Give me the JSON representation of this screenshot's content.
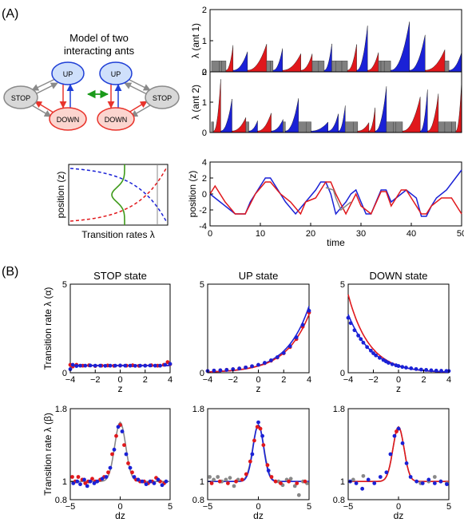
{
  "panel_a_label": "(A)",
  "panel_b_label": "(B)",
  "diagram": {
    "title_line1": "Model of two",
    "title_line2": "interacting ants",
    "states": {
      "up": "UP",
      "stop": "STOP",
      "down": "DOWN"
    },
    "colors": {
      "up": "#1f3fd6",
      "down": "#e8342c",
      "stop": "#8a8a8a",
      "coupling": "#1a9a1a",
      "up_fill": "#cfe0fb",
      "down_fill": "#fbd5cf",
      "stop_fill": "#d8d8d8"
    }
  },
  "colors": {
    "red": "#e0181c",
    "blue": "#1a21d6",
    "gray": "#888888",
    "green": "#3e9a1a"
  },
  "chart_data": [
    {
      "id": "rates-schematic",
      "type": "line",
      "xlabel": "Transition rates λ",
      "ylabel": "position (z)",
      "series": [
        {
          "style": "dashed",
          "color": "red"
        },
        {
          "style": "dashed",
          "color": "blue"
        },
        {
          "style": "solid",
          "color": "green"
        }
      ]
    },
    {
      "id": "ant1-rates",
      "type": "area",
      "ylabel": "λ (ant 1)",
      "ylim": [
        0,
        2
      ],
      "yticks": [
        "0",
        "1",
        "2"
      ],
      "xlim": [
        0,
        50
      ]
    },
    {
      "id": "ant2-rates",
      "type": "area",
      "ylabel": "λ (ant 2)",
      "ylim": [
        0,
        2
      ],
      "yticks": [
        "0",
        "1",
        "2"
      ],
      "xlim": [
        0,
        50
      ]
    },
    {
      "id": "position-trace",
      "type": "line",
      "xlabel": "time",
      "ylabel": "position (z)",
      "xlim": [
        0,
        50
      ],
      "ylim": [
        -4,
        4
      ],
      "xticks": [
        "0",
        "10",
        "20",
        "30",
        "40",
        "50"
      ],
      "yticks": [
        "-4",
        "-2",
        "0",
        "2",
        "4"
      ],
      "series": [
        {
          "color": "blue",
          "x": [
            0,
            2,
            5,
            7,
            8,
            9,
            11,
            12,
            14,
            15,
            17,
            19,
            21,
            22,
            23,
            24,
            25,
            27,
            28,
            29,
            30,
            31,
            32,
            34,
            35,
            36,
            37,
            39,
            41,
            42,
            43,
            44,
            45,
            47,
            50
          ],
          "y": [
            0,
            -1,
            -2.5,
            -2.5,
            -1,
            0,
            2,
            2,
            0,
            -1,
            -2.5,
            -1,
            0.5,
            1.5,
            1.5,
            0,
            -2.5,
            -1,
            0,
            0.5,
            -1,
            -2.5,
            -2.5,
            0.5,
            0.5,
            -1,
            -0.5,
            0.5,
            -0.5,
            -2.8,
            -2.8,
            -1.5,
            -0.5,
            0.5,
            3
          ]
        },
        {
          "color": "red",
          "x": [
            0,
            1,
            3,
            5,
            6,
            7,
            9,
            11,
            12,
            14,
            16,
            18,
            19,
            21,
            23,
            24,
            25,
            27,
            29,
            30,
            32,
            34,
            35,
            36,
            38,
            39,
            40,
            42,
            43,
            44,
            46,
            48,
            50
          ],
          "y": [
            0,
            1,
            -1,
            -2.5,
            -2.5,
            -2.5,
            0,
            1.5,
            1.5,
            0,
            -1,
            -2.5,
            -1,
            -0.5,
            1.5,
            1.5,
            0,
            -2.5,
            0,
            -1.5,
            -2.5,
            0.3,
            0.3,
            -1.5,
            0.5,
            0.5,
            -0.5,
            -2.5,
            -2.5,
            -1.5,
            -0.5,
            -0.5,
            -2.5
          ]
        },
        {
          "color": "gray",
          "x": [
            23,
            24.5,
            25,
            26,
            28
          ],
          "y": [
            0.8,
            0.5,
            -0.5,
            -2,
            -1
          ]
        }
      ]
    },
    {
      "id": "stop-alpha",
      "type": "scatter",
      "title": "STOP state",
      "ylabel": "Transition rate λ (α)",
      "xlabel": "z",
      "xlim": [
        -4,
        4
      ],
      "ylim": [
        0,
        5
      ],
      "xticks": [
        "−4",
        "−2",
        "0",
        "2",
        "4"
      ],
      "yticks": [
        "0",
        "5"
      ],
      "fit": [
        {
          "color": "red",
          "kind": "flat",
          "level": 0.42
        },
        {
          "color": "blue",
          "kind": "flat",
          "level": 0.4
        }
      ],
      "series": [
        {
          "color": "red",
          "x": [
            -4,
            -3.8,
            -3.5,
            -3,
            -2.5,
            -2,
            -1.5,
            -1,
            -0.5,
            0,
            0.5,
            1,
            1.5,
            2,
            2.5,
            3,
            3.5,
            3.8,
            4
          ],
          "y": [
            0.45,
            0.35,
            0.45,
            0.4,
            0.42,
            0.38,
            0.4,
            0.41,
            0.39,
            0.4,
            0.4,
            0.42,
            0.39,
            0.4,
            0.42,
            0.4,
            0.45,
            0.6,
            0.48
          ]
        },
        {
          "color": "blue",
          "x": [
            -4,
            -3.8,
            -3.5,
            -3.2,
            -2.8,
            -2.4,
            -2,
            -1.6,
            -1.2,
            -0.8,
            -0.4,
            0,
            0.4,
            0.8,
            1.2,
            1.6,
            2,
            2.4,
            2.8,
            3.2,
            3.6,
            4
          ],
          "y": [
            0.2,
            0.45,
            0.38,
            0.4,
            0.4,
            0.41,
            0.4,
            0.4,
            0.39,
            0.4,
            0.4,
            0.41,
            0.4,
            0.4,
            0.39,
            0.4,
            0.4,
            0.41,
            0.4,
            0.4,
            0.45,
            0.5
          ]
        }
      ]
    },
    {
      "id": "up-alpha",
      "type": "scatter",
      "title": "UP state",
      "ylabel": "",
      "xlabel": "z",
      "xlim": [
        -4,
        4
      ],
      "ylim": [
        0,
        5
      ],
      "xticks": [
        "−4",
        "−2",
        "0",
        "2",
        "4"
      ],
      "yticks": [
        "0",
        "5"
      ],
      "fit": [
        {
          "color": "blue",
          "kind": "expup",
          "a": 0.4,
          "b": 0.56
        },
        {
          "color": "red",
          "kind": "expup",
          "a": 0.38,
          "b": 0.54
        }
      ],
      "series": [
        {
          "color": "red",
          "x": [
            -4,
            -3.5,
            -3,
            -2.5,
            -2,
            -1.5,
            -1,
            -0.5,
            0,
            0.5,
            1,
            1.5,
            2,
            2.5,
            3,
            3.5,
            4
          ],
          "y": [
            0.1,
            0.12,
            0.14,
            0.17,
            0.2,
            0.24,
            0.3,
            0.36,
            0.44,
            0.54,
            0.68,
            0.86,
            1.1,
            1.45,
            1.9,
            2.6,
            3.4
          ]
        },
        {
          "color": "blue",
          "x": [
            -4,
            -3.5,
            -3,
            -2.5,
            -2,
            -1.5,
            -1,
            -0.5,
            0,
            0.5,
            1,
            1.5,
            2,
            2.5,
            3,
            3.5,
            4
          ],
          "y": [
            0.1,
            0.12,
            0.14,
            0.16,
            0.2,
            0.24,
            0.3,
            0.37,
            0.45,
            0.56,
            0.7,
            0.88,
            1.12,
            1.5,
            2.0,
            2.7,
            3.5
          ]
        }
      ]
    },
    {
      "id": "down-alpha",
      "type": "scatter",
      "title": "DOWN state",
      "ylabel": "",
      "xlabel": "z",
      "xlim": [
        -4,
        4
      ],
      "ylim": [
        0,
        5
      ],
      "xticks": [
        "−4",
        "−2",
        "0",
        "2",
        "4"
      ],
      "yticks": [
        "0",
        "5"
      ],
      "fit": [
        {
          "color": "red",
          "kind": "expdown",
          "a": 0.4,
          "b": 0.6
        },
        {
          "color": "blue",
          "kind": "expdown",
          "a": 0.38,
          "b": 0.54
        }
      ],
      "series": [
        {
          "color": "blue",
          "x": [
            -4,
            -3.8,
            -3.5,
            -3.2,
            -3,
            -2.8,
            -2.5,
            -2.2,
            -2,
            -1.8,
            -1.5,
            -1.2,
            -1,
            -0.8,
            -0.5,
            -0.2,
            0,
            0.3,
            0.6,
            1,
            1.4,
            1.8,
            2.2,
            2.6,
            3,
            3.4,
            3.8,
            4
          ],
          "y": [
            3.1,
            2.8,
            2.4,
            2.1,
            1.9,
            1.7,
            1.45,
            1.25,
            1.1,
            0.98,
            0.84,
            0.72,
            0.64,
            0.56,
            0.48,
            0.42,
            0.38,
            0.33,
            0.29,
            0.25,
            0.21,
            0.18,
            0.16,
            0.14,
            0.12,
            0.11,
            0.1,
            0.1
          ]
        }
      ]
    },
    {
      "id": "stop-beta",
      "type": "scatter",
      "title": "",
      "ylabel": "Transition rate λ (β)",
      "xlabel": "dz",
      "xlim": [
        -5,
        5
      ],
      "ylim": [
        0.8,
        1.8
      ],
      "xticks": [
        "−5",
        "0",
        "5"
      ],
      "yticks": [
        "0.8",
        "1",
        "1.8"
      ],
      "fit": [
        {
          "color": "gray",
          "kind": "gauss",
          "amp": 0.65,
          "sd": 0.55
        }
      ],
      "series": [
        {
          "color": "red",
          "x": [
            -4.8,
            -4.5,
            -4.2,
            -3.8,
            -3.5,
            -3.2,
            -2.8,
            -2.5,
            -2,
            -1.6,
            -1.2,
            -0.8,
            -0.4,
            0,
            0.4,
            0.8,
            1.2,
            1.6,
            2,
            2.4,
            2.8,
            3.2,
            3.6,
            4,
            4.4
          ],
          "y": [
            1.05,
            1.0,
            1.05,
            1.02,
            0.98,
            1.0,
            1.03,
            1.0,
            1.02,
            1.05,
            1.1,
            1.3,
            1.5,
            1.62,
            1.4,
            1.2,
            1.1,
            1.02,
            1.0,
            1.0,
            0.98,
            1.0,
            1.04,
            1.0,
            0.98
          ]
        },
        {
          "color": "blue",
          "x": [
            -4.7,
            -4.3,
            -4,
            -3.6,
            -3.3,
            -3,
            -2.6,
            -2.3,
            -1.8,
            -1.4,
            -1,
            -0.6,
            -0.2,
            0.2,
            0.6,
            1,
            1.4,
            1.8,
            2.2,
            2.6,
            3,
            3.4,
            3.8,
            4.2,
            4.6
          ],
          "y": [
            0.98,
            1.0,
            0.97,
            1.02,
            0.95,
            1.0,
            0.98,
            1.0,
            1.03,
            1.05,
            1.15,
            1.35,
            1.6,
            1.55,
            1.3,
            1.15,
            1.05,
            1.02,
            1.0,
            0.97,
            1.0,
            0.98,
            1.02,
            0.96,
            1.0
          ]
        }
      ]
    },
    {
      "id": "up-beta",
      "type": "scatter",
      "title": "",
      "ylabel": "",
      "xlabel": "dz",
      "xlim": [
        -5,
        5
      ],
      "ylim": [
        0.8,
        1.8
      ],
      "xticks": [
        "−5",
        "0",
        "5"
      ],
      "yticks": [
        "0.8",
        "1",
        "1.8"
      ],
      "fit": [
        {
          "color": "gray",
          "kind": "gauss",
          "amp": 0.62,
          "sd": 0.55
        },
        {
          "color": "blue",
          "kind": "gauss",
          "amp": 0.62,
          "sd": 0.52
        }
      ],
      "series": [
        {
          "color": "gray",
          "x": [
            -4.8,
            -4.4,
            -4,
            -3.6,
            -3.2,
            -2.8,
            -2.4,
            -2,
            2,
            2.4,
            2.8,
            3.2,
            3.6,
            4,
            4.4,
            4.8
          ],
          "y": [
            1.05,
            1.02,
            1.05,
            1.0,
            1.02,
            1.04,
            0.95,
            1.02,
            1.0,
            0.96,
            1.02,
            1.03,
            0.95,
            0.85,
            1.0,
            0.98
          ]
        },
        {
          "color": "red",
          "x": [
            -4.6,
            -3.8,
            -3,
            -2.2,
            -1.6,
            -1.2,
            -0.8,
            -0.4,
            -0.1,
            0.2,
            0.5,
            0.9,
            1.3,
            1.7,
            2.2,
            3,
            3.8,
            4.6
          ],
          "y": [
            0.98,
            1.0,
            0.98,
            1.0,
            1.02,
            1.08,
            1.22,
            1.45,
            1.6,
            1.58,
            1.4,
            1.18,
            1.05,
            1.0,
            0.98,
            1.0,
            0.98,
            1.0
          ]
        },
        {
          "color": "blue",
          "x": [
            -0.6,
            0,
            0.4,
            1.0
          ],
          "y": [
            1.3,
            1.65,
            1.5,
            1.12
          ]
        }
      ]
    },
    {
      "id": "down-beta",
      "type": "scatter",
      "title": "",
      "ylabel": "",
      "xlabel": "dz",
      "xlim": [
        -5,
        5
      ],
      "ylim": [
        0.8,
        1.8
      ],
      "xticks": [
        "−5",
        "0",
        "5"
      ],
      "yticks": [
        "0.8",
        "1",
        "1.8"
      ],
      "fit": [
        {
          "color": "gray",
          "kind": "gauss",
          "amp": 0.6,
          "sd": 0.55
        },
        {
          "color": "red",
          "kind": "gauss",
          "amp": 0.6,
          "sd": 0.55
        }
      ],
      "series": [
        {
          "color": "gray",
          "x": [
            -4.5,
            -3.5,
            2.2,
            3,
            3.6,
            4.2,
            4.8
          ],
          "y": [
            1.02,
            1.06,
            0.98,
            1.0,
            1.05,
            1.0,
            0.98
          ]
        },
        {
          "color": "blue",
          "x": [
            -4.8,
            -4.2,
            -3.6,
            -3,
            -2.4,
            -1.8,
            -1.2,
            -0.8,
            -0.4,
            0,
            0.4,
            0.8,
            1.2,
            1.8,
            2.4,
            3,
            3.6,
            4.2,
            4.8
          ],
          "y": [
            1.0,
            0.98,
            0.92,
            1.02,
            0.98,
            1.05,
            1.1,
            1.3,
            1.5,
            1.58,
            1.42,
            1.2,
            1.05,
            1.0,
            0.98,
            1.02,
            0.98,
            1.0,
            0.97
          ]
        },
        {
          "color": "red",
          "x": [
            -0.2
          ],
          "y": [
            1.55
          ]
        }
      ]
    }
  ]
}
